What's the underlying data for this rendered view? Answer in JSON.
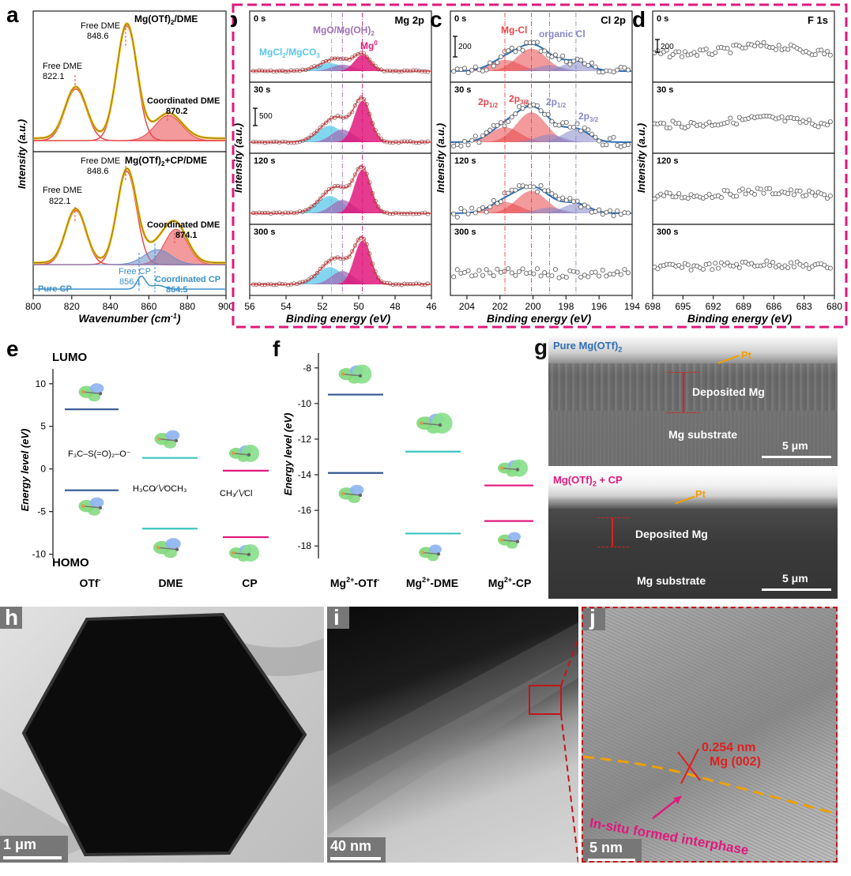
{
  "panels": {
    "a": {
      "label": "a",
      "ylabel": "Intensity (a.u.)",
      "xlabel": "Wavenumber (cm",
      "xlabel_sup": "-1",
      "xlabel_end": ")",
      "x_ticks": [
        "800",
        "820",
        "840",
        "860",
        "880",
        "900"
      ],
      "top_title": "Mg(OTf)",
      "top_title_sub": "2",
      "top_title_end": "/DME",
      "bottom_title": "Mg(OTf)",
      "bottom_title_sub": "2",
      "bottom_title_end": "+CP/DME",
      "ann_free_dme": "Free DME",
      "ann_coord_dme": "Coordinated DME",
      "val_848_top": "848.6",
      "val_822_top": "822.1",
      "val_870": "870.2",
      "val_848_bot": "848.6",
      "val_822_bot": "822.1",
      "val_874": "874.1",
      "pure_cp": "Pure CP",
      "free_cp": "Free CP",
      "val_856": "856.1",
      "coord_cp": "Coordinated CP",
      "val_864": "864.5"
    },
    "b": {
      "label": "b",
      "title": "Mg 2p",
      "ann1": "MgO/Mg(OH)",
      "ann1_sub": "2",
      "ann2": "MgCl",
      "ann2_sub": "2",
      "ann2_end": "/MgCO",
      "ann2_sub2": "3",
      "ann3": "Mg",
      "ann3_sup": "0",
      "scale": "500",
      "x_ticks": [
        "56",
        "54",
        "52",
        "50",
        "48",
        "46"
      ]
    },
    "c": {
      "label": "c",
      "title": "Cl 2p",
      "ann1": "Mg-Cl",
      "ann2": "organic Cl",
      "scale": "200",
      "p1": "2p",
      "p1_sub": "1/2",
      "p2": "2p",
      "p2_sub": "3/2",
      "p3": "2p",
      "p3_sub": "1/2",
      "p4": "2p",
      "p4_sub": "3/2",
      "x_ticks": [
        "204",
        "202",
        "200",
        "198",
        "196",
        "194"
      ]
    },
    "d": {
      "label": "d",
      "title": "F 1s",
      "scale": "200",
      "x_ticks": [
        "698",
        "695",
        "692",
        "689",
        "686",
        "683",
        "680"
      ]
    },
    "bcd_ylabel": "Intensity (a.u.)",
    "bcd_xlabel": "Binding energy (eV)",
    "times": [
      "0 s",
      "30 s",
      "120 s",
      "300 s"
    ],
    "e": {
      "label": "e",
      "lumo": "LUMO",
      "homo": "HOMO",
      "ylabel": "Energy level (eV)",
      "y_ticks": [
        "10",
        "5",
        "0",
        "-5",
        "-10"
      ],
      "categories": [
        "OTf",
        "DME",
        "CP"
      ],
      "otf_sup": "-",
      "struct_otf": "F₃C–S(=O)₂–O⁻",
      "struct_dme": "H₃CO∕∖∕OCH₃",
      "struct_cp": "CH₃∕∖∕Cl"
    },
    "f": {
      "label": "f",
      "ylabel": "Energy level (eV)",
      "y_ticks": [
        "-8",
        "-10",
        "-12",
        "-14",
        "-16",
        "-18"
      ],
      "categories": [
        "Mg",
        "Mg",
        "Mg"
      ],
      "cat_sup": "2+",
      "cat_end": [
        "-OTf",
        "-DME",
        "-CP"
      ],
      "cat_end_sup": [
        "-",
        "",
        ""
      ]
    },
    "g": {
      "label": "g",
      "top_title": "Pure Mg(OTf)",
      "top_title_sub": "2",
      "bottom_title": "Mg(OTf)",
      "bottom_title_sub": "2",
      "bottom_title_end": " + CP",
      "pt": "Pt",
      "deposited": "Deposited Mg",
      "substrate": "Mg substrate",
      "scale": "5 μm"
    },
    "h": {
      "label": "h",
      "scale": "1 μm"
    },
    "i": {
      "label": "i",
      "scale": "40 nm"
    },
    "j": {
      "label": "j",
      "scale": "5 nm",
      "d_spacing": "0.254 nm",
      "plane": "Mg (002)",
      "interphase": "In-situ formed interphase"
    }
  },
  "colors": {
    "pink": "#e0197d",
    "red_fit": "#e8474a",
    "cyan": "#5ac8ea",
    "purple": "#9e6fb6",
    "blue_line": "#2f6fb5",
    "teal": "#3cc6c0",
    "navy": "#30568f",
    "orange": "#f0a000",
    "dashed_border": "#e0197d"
  },
  "chart_data": [
    {
      "panel": "a",
      "type": "line",
      "title": "",
      "xlabel": "Wavenumber (cm-1)",
      "ylabel": "Intensity (a.u.)",
      "xlim": [
        800,
        900
      ],
      "series": [
        {
          "name": "Mg(OTf)2/DME",
          "peaks": [
            822.1,
            848.6,
            870.2
          ]
        },
        {
          "name": "Mg(OTf)2+CP/DME",
          "peaks": [
            822.1,
            848.6,
            874.1
          ]
        },
        {
          "name": "Pure CP",
          "peaks": [
            856.1,
            864.5
          ]
        }
      ]
    },
    {
      "panel": "b",
      "type": "line",
      "title": "Mg 2p",
      "xlabel": "Binding energy (eV)",
      "xlim": [
        56,
        46
      ],
      "components": [
        {
          "name": "MgCl2/MgCO3",
          "center": 51.5
        },
        {
          "name": "MgO/Mg(OH)2",
          "center": 50.9
        },
        {
          "name": "Mg0",
          "center": 49.8
        }
      ]
    },
    {
      "panel": "c",
      "type": "line",
      "title": "Cl 2p",
      "xlabel": "Binding energy (eV)",
      "xlim": [
        205,
        194
      ],
      "components": [
        {
          "name": "Mg-Cl 2p1/2",
          "center": 201.7
        },
        {
          "name": "Mg-Cl 2p3/2",
          "center": 200.1
        },
        {
          "name": "organic Cl 2p1/2",
          "center": 199.0
        },
        {
          "name": "organic Cl 2p3/2",
          "center": 197.4
        }
      ]
    },
    {
      "panel": "d",
      "type": "scatter",
      "title": "F 1s",
      "xlabel": "Binding energy (eV)",
      "xlim": [
        698,
        680
      ]
    },
    {
      "panel": "e",
      "type": "bar",
      "title": "",
      "ylabel": "Energy level (eV)",
      "ylim": [
        -10.5,
        11
      ],
      "categories": [
        "OTf-",
        "DME",
        "CP"
      ],
      "series": [
        {
          "name": "LUMO",
          "values": [
            7.0,
            1.3,
            -0.2
          ]
        },
        {
          "name": "HOMO",
          "values": [
            -2.5,
            -7.0,
            -8.0
          ]
        }
      ]
    },
    {
      "panel": "f",
      "type": "bar",
      "title": "",
      "ylabel": "Energy level (eV)",
      "ylim": [
        -18.7,
        -7.7
      ],
      "categories": [
        "Mg2+-OTf-",
        "Mg2+-DME",
        "Mg2+-CP"
      ],
      "series": [
        {
          "name": "LUMO",
          "values": [
            -9.5,
            -12.7,
            -14.6
          ]
        },
        {
          "name": "HOMO",
          "values": [
            -13.9,
            -17.3,
            -16.6
          ]
        }
      ]
    }
  ]
}
